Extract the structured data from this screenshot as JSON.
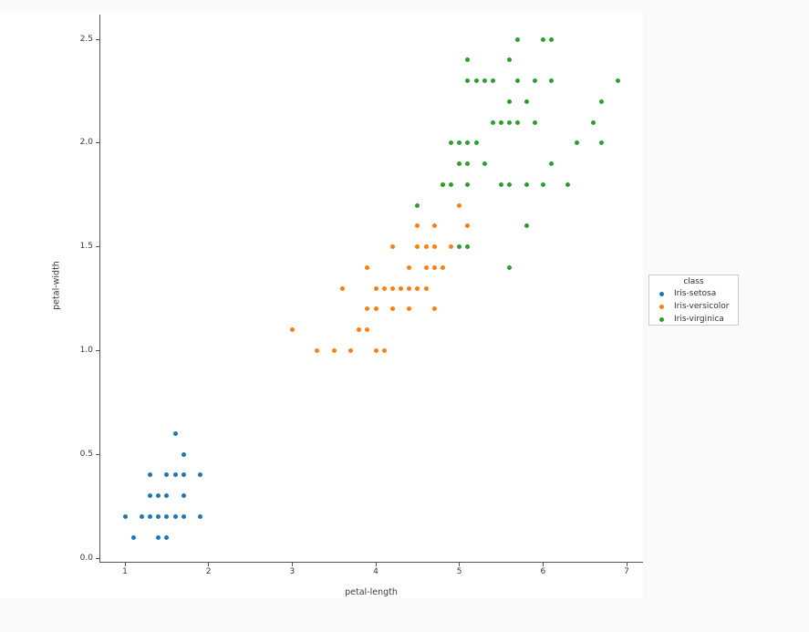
{
  "page": {
    "background_color": "#fafafa",
    "figure_background_color": "#ffffff",
    "axis_color": "#555555",
    "text_color": "#3a3a3a"
  },
  "chart_data": {
    "type": "scatter",
    "title": "",
    "xlabel": "petal-length",
    "ylabel": "petal-width",
    "xlim": [
      0.705,
      7.195
    ],
    "ylim": [
      -0.02,
      2.62
    ],
    "grid": false,
    "x_ticks": {
      "values": [
        1,
        2,
        3,
        4,
        5,
        6,
        7
      ],
      "labels": [
        "1",
        "2",
        "3",
        "4",
        "5",
        "6",
        "7"
      ]
    },
    "y_ticks": {
      "values": [
        0,
        0.5,
        1,
        1.5,
        2,
        2.5
      ],
      "labels": [
        "0.0",
        "0.5",
        "1.0",
        "1.5",
        "2.0",
        "2.5"
      ]
    },
    "legend": {
      "title": "class",
      "position": "outside-right-center",
      "entries": [
        {
          "label": "Iris-setosa",
          "color": "#1f77b4"
        },
        {
          "label": "Iris-versicolor",
          "color": "#ff7f0e"
        },
        {
          "label": "Iris-virginica",
          "color": "#2ca02c"
        }
      ]
    },
    "series": [
      {
        "name": "Iris-setosa",
        "color": "#1f77b4",
        "points": [
          [
            1.0,
            0.2
          ],
          [
            1.1,
            0.1
          ],
          [
            1.2,
            0.2
          ],
          [
            1.3,
            0.2
          ],
          [
            1.3,
            0.3
          ],
          [
            1.3,
            0.4
          ],
          [
            1.4,
            0.1
          ],
          [
            1.4,
            0.2
          ],
          [
            1.4,
            0.3
          ],
          [
            1.5,
            0.1
          ],
          [
            1.5,
            0.2
          ],
          [
            1.5,
            0.3
          ],
          [
            1.5,
            0.4
          ],
          [
            1.6,
            0.2
          ],
          [
            1.6,
            0.4
          ],
          [
            1.6,
            0.6
          ],
          [
            1.7,
            0.2
          ],
          [
            1.7,
            0.3
          ],
          [
            1.7,
            0.4
          ],
          [
            1.7,
            0.5
          ],
          [
            1.9,
            0.2
          ],
          [
            1.9,
            0.4
          ]
        ]
      },
      {
        "name": "Iris-versicolor",
        "color": "#ff7f0e",
        "points": [
          [
            3.0,
            1.1
          ],
          [
            3.3,
            1.0
          ],
          [
            3.5,
            1.0
          ],
          [
            3.6,
            1.3
          ],
          [
            3.7,
            1.0
          ],
          [
            3.8,
            1.1
          ],
          [
            3.9,
            1.1
          ],
          [
            3.9,
            1.2
          ],
          [
            3.9,
            1.4
          ],
          [
            4.0,
            1.0
          ],
          [
            4.0,
            1.2
          ],
          [
            4.0,
            1.3
          ],
          [
            4.1,
            1.0
          ],
          [
            4.1,
            1.3
          ],
          [
            4.2,
            1.2
          ],
          [
            4.2,
            1.3
          ],
          [
            4.2,
            1.5
          ],
          [
            4.3,
            1.3
          ],
          [
            4.4,
            1.2
          ],
          [
            4.4,
            1.3
          ],
          [
            4.4,
            1.4
          ],
          [
            4.5,
            1.3
          ],
          [
            4.5,
            1.5
          ],
          [
            4.5,
            1.6
          ],
          [
            4.6,
            1.3
          ],
          [
            4.6,
            1.4
          ],
          [
            4.6,
            1.5
          ],
          [
            4.7,
            1.2
          ],
          [
            4.7,
            1.4
          ],
          [
            4.7,
            1.5
          ],
          [
            4.7,
            1.6
          ],
          [
            4.8,
            1.4
          ],
          [
            4.8,
            1.8
          ],
          [
            4.9,
            1.5
          ],
          [
            5.0,
            1.7
          ],
          [
            5.1,
            1.6
          ]
        ]
      },
      {
        "name": "Iris-virginica",
        "color": "#2ca02c",
        "points": [
          [
            4.5,
            1.7
          ],
          [
            4.8,
            1.8
          ],
          [
            4.9,
            1.8
          ],
          [
            4.9,
            2.0
          ],
          [
            5.0,
            1.5
          ],
          [
            5.0,
            1.9
          ],
          [
            5.0,
            2.0
          ],
          [
            5.1,
            1.5
          ],
          [
            5.1,
            1.8
          ],
          [
            5.1,
            1.9
          ],
          [
            5.1,
            2.0
          ],
          [
            5.1,
            2.3
          ],
          [
            5.1,
            2.4
          ],
          [
            5.2,
            2.0
          ],
          [
            5.2,
            2.3
          ],
          [
            5.3,
            1.9
          ],
          [
            5.3,
            2.3
          ],
          [
            5.4,
            2.1
          ],
          [
            5.4,
            2.3
          ],
          [
            5.5,
            1.8
          ],
          [
            5.5,
            2.1
          ],
          [
            5.6,
            1.4
          ],
          [
            5.6,
            1.8
          ],
          [
            5.6,
            2.1
          ],
          [
            5.6,
            2.2
          ],
          [
            5.6,
            2.4
          ],
          [
            5.7,
            2.1
          ],
          [
            5.7,
            2.3
          ],
          [
            5.7,
            2.5
          ],
          [
            5.8,
            1.6
          ],
          [
            5.8,
            1.8
          ],
          [
            5.8,
            2.2
          ],
          [
            5.9,
            2.1
          ],
          [
            5.9,
            2.3
          ],
          [
            6.0,
            1.8
          ],
          [
            6.0,
            2.5
          ],
          [
            6.1,
            1.9
          ],
          [
            6.1,
            2.3
          ],
          [
            6.1,
            2.5
          ],
          [
            6.3,
            1.8
          ],
          [
            6.4,
            2.0
          ],
          [
            6.6,
            2.1
          ],
          [
            6.7,
            2.0
          ],
          [
            6.7,
            2.2
          ],
          [
            6.9,
            2.3
          ]
        ]
      }
    ]
  }
}
